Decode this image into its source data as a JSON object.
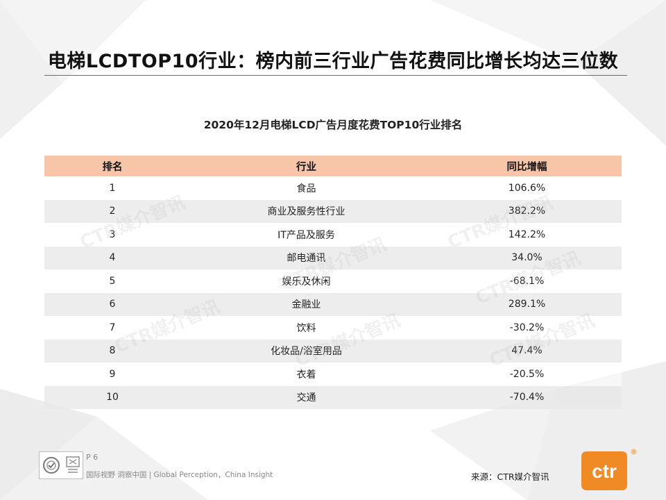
{
  "slide": {
    "title": "电梯LCDTOP10行业：榜内前三行业广告花费同比增长均达三位数"
  },
  "table": {
    "title": "2020年12月电梯LCD广告月度花费TOP10行业排名",
    "headers": {
      "rank": "排名",
      "industry": "行业",
      "yoy": "同比增幅"
    },
    "rows": [
      {
        "rank": "1",
        "industry": "食品",
        "yoy": "106.6%"
      },
      {
        "rank": "2",
        "industry": "商业及服务性行业",
        "yoy": "382.2%"
      },
      {
        "rank": "3",
        "industry": "IT产品及服务",
        "yoy": "142.2%"
      },
      {
        "rank": "4",
        "industry": "邮电通讯",
        "yoy": "34.0%"
      },
      {
        "rank": "5",
        "industry": "娱乐及休闲",
        "yoy": "-68.1%"
      },
      {
        "rank": "6",
        "industry": "金融业",
        "yoy": "289.1%"
      },
      {
        "rank": "7",
        "industry": "饮料",
        "yoy": "-30.2%"
      },
      {
        "rank": "8",
        "industry": "化妆品/浴室用品",
        "yoy": "47.4%"
      },
      {
        "rank": "9",
        "industry": "衣着",
        "yoy": "-20.5%"
      },
      {
        "rank": "10",
        "industry": "交通",
        "yoy": "-70.4%"
      }
    ]
  },
  "watermark": {
    "text": "CTR媒介智讯"
  },
  "footer": {
    "page": "P 6",
    "tagline": "国际视野 洞察中国 | Global Perception，China Insight",
    "source": "来源：CTR媒介智讯",
    "logo_text": "ctr",
    "reg_mark": "®"
  },
  "colors": {
    "header_fill": "#f7c5a7",
    "brand_orange": "#f08a24",
    "stripe": "#e8e8e8"
  },
  "icons": {
    "certification": "certification-seal-icon",
    "brand": "ctr-logo-icon"
  }
}
